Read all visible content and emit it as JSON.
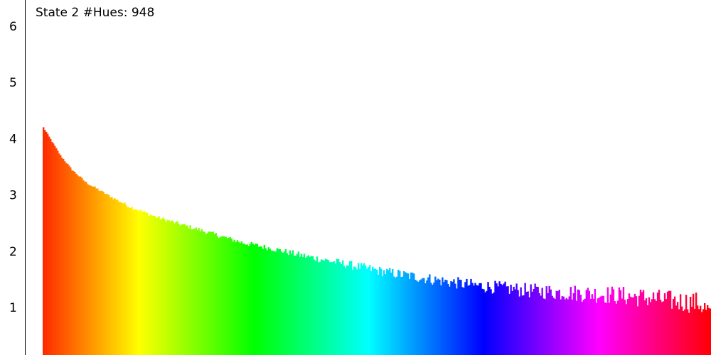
{
  "chart_data": {
    "type": "bar",
    "title": "State 2 #Hues: 948",
    "xlabel": "",
    "ylabel": "",
    "ylim": [
      0.2,
      6.3
    ],
    "yticks": [
      1,
      2,
      3,
      4,
      5,
      6
    ],
    "ytick_labels": [
      "1",
      "2",
      "3",
      "4",
      "5",
      "6"
    ],
    "grid": false,
    "hue_range": [
      0,
      360
    ],
    "bin_count": 469,
    "anchor_values": [
      [
        0,
        4.2
      ],
      [
        6,
        3.95
      ],
      [
        12,
        3.7
      ],
      [
        20,
        3.45
      ],
      [
        30,
        3.22
      ],
      [
        45,
        3.0
      ],
      [
        60,
        2.8
      ],
      [
        80,
        2.6
      ],
      [
        100,
        2.45
      ],
      [
        120,
        2.3
      ],
      [
        140,
        2.15
      ],
      [
        160,
        2.05
      ],
      [
        180,
        1.93
      ],
      [
        200,
        1.83
      ],
      [
        220,
        1.73
      ],
      [
        240,
        1.63
      ],
      [
        260,
        1.55
      ],
      [
        280,
        1.47
      ],
      [
        300,
        1.4
      ],
      [
        320,
        1.35
      ],
      [
        340,
        1.3
      ],
      [
        360,
        1.27
      ],
      [
        380,
        1.25
      ],
      [
        400,
        1.22
      ],
      [
        420,
        1.18
      ],
      [
        440,
        1.12
      ],
      [
        460,
        1.08
      ],
      [
        468,
        0.9
      ]
    ],
    "noise_amplitude": [
      [
        0,
        0.01
      ],
      [
        60,
        0.03
      ],
      [
        160,
        0.05
      ],
      [
        240,
        0.09
      ],
      [
        320,
        0.12
      ],
      [
        400,
        0.17
      ],
      [
        468,
        0.2
      ]
    ]
  }
}
